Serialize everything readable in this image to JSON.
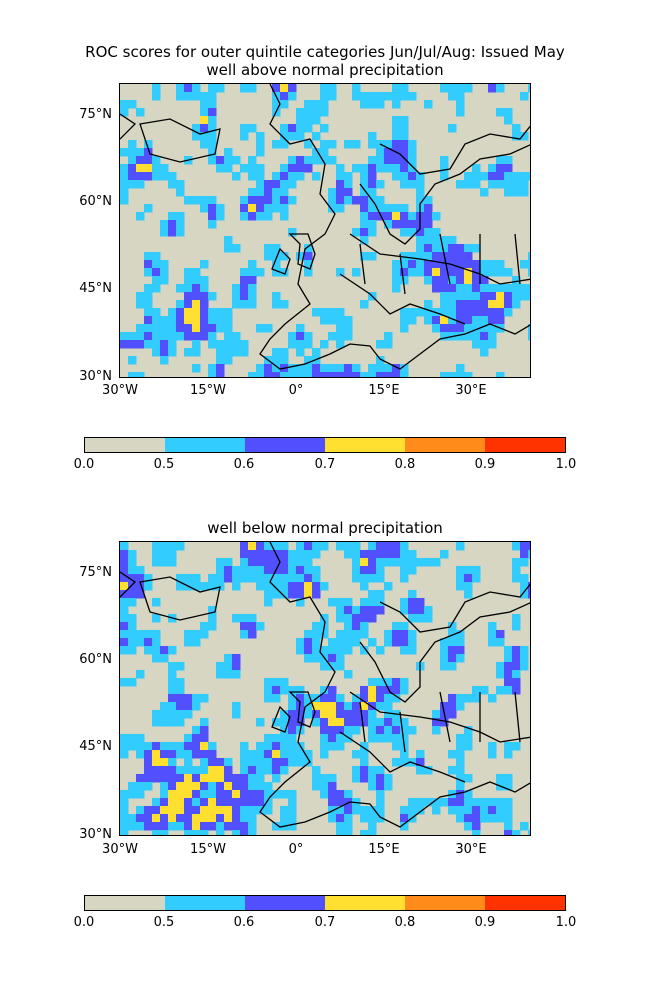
{
  "figure": {
    "title_line1": "ROC scores for outer quintile categories Jun/Jul/Aug: Issued May",
    "panels": [
      {
        "subtitle": "well above normal precipitation"
      },
      {
        "subtitle": "well below normal precipitation"
      }
    ]
  },
  "axes": {
    "lat_ticks": [
      "75°N",
      "60°N",
      "45°N",
      "30°N"
    ],
    "lon_ticks": [
      "30°W",
      "15°W",
      "0°",
      "15°E",
      "30°E"
    ],
    "lat_range": [
      30,
      80
    ],
    "lon_range": [
      -30,
      40
    ]
  },
  "colorbar": {
    "boundaries": [
      "0.0",
      "0.5",
      "0.6",
      "0.7",
      "0.8",
      "0.9",
      "1.0"
    ],
    "colors": [
      "#d6d6c2",
      "#33ccff",
      "#5050ff",
      "#ffe030",
      "#ff8c1a",
      "#ff3300"
    ]
  },
  "chart_data": [
    {
      "type": "heatmap",
      "title": "well above normal precipitation",
      "x_range": [
        -30,
        40
      ],
      "y_range": [
        30,
        80
      ],
      "levels": [
        0.0,
        0.5,
        0.6,
        0.7,
        0.8,
        0.9,
        1.0
      ],
      "dominant_category": "0.0-0.5"
    },
    {
      "type": "heatmap",
      "title": "well below normal precipitation",
      "x_range": [
        -30,
        40
      ],
      "y_range": [
        30,
        80
      ],
      "levels": [
        0.0,
        0.5,
        0.6,
        0.7,
        0.8,
        0.9,
        1.0
      ],
      "dominant_category": "0.0-0.5"
    }
  ]
}
